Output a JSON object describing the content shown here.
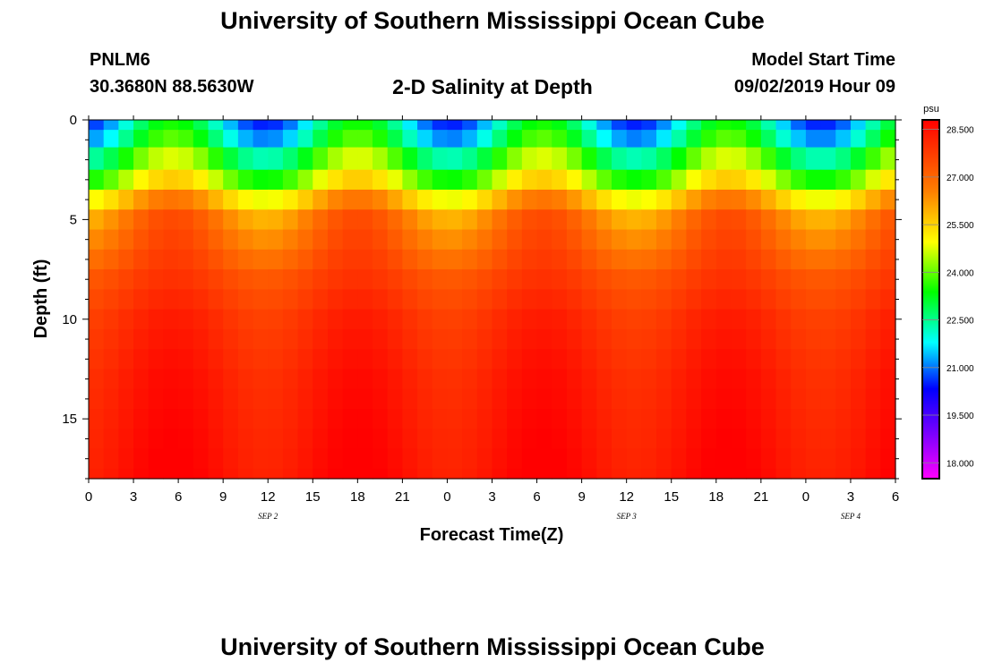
{
  "header": {
    "top_title": "University of Southern Mississippi Ocean Cube",
    "station_name": "PNLM6",
    "station_coords": "30.3680N 88.5630W",
    "plot_title": "2-D Salinity at Depth",
    "model_label": "Model Start Time",
    "model_time": "09/02/2019 Hour 09",
    "bottom_title": "University of Southern Mississippi Ocean Cube"
  },
  "chart_data": {
    "type": "heatmap",
    "title": "2-D Salinity at Depth",
    "xlabel": "Forecast Time(Z)",
    "ylabel": "Depth (ft)",
    "x_ticks": [
      "0",
      "3",
      "6",
      "9",
      "12",
      "15",
      "18",
      "21",
      "0",
      "3",
      "6",
      "9",
      "12",
      "15",
      "18",
      "21",
      "0",
      "3",
      "6"
    ],
    "date_labels": [
      {
        "label": "SEP 2",
        "hour": 12
      },
      {
        "label": "SEP 3",
        "hour": 36
      },
      {
        "label": "SEP 4",
        "hour": 51
      }
    ],
    "x_range_hours": [
      0,
      54
    ],
    "y_ticks": [
      0,
      5,
      10,
      15
    ],
    "y_range_ft": [
      0,
      18
    ],
    "colorbar": {
      "unit": "psu",
      "range": [
        17.5,
        28.8
      ],
      "tick_values": [
        18.0,
        19.5,
        21.0,
        22.5,
        24.0,
        25.5,
        27.0,
        28.5
      ],
      "tick_labels": [
        "18.000",
        "19.500",
        "21.000",
        "22.500",
        "24.000",
        "25.500",
        "27.000",
        "28.500"
      ]
    },
    "depth_rows_ft": [
      0.25,
      0.75,
      2,
      3,
      4,
      5,
      6,
      7,
      8,
      9,
      10,
      11,
      12,
      13,
      14,
      15,
      16,
      17,
      18
    ],
    "salinity_by_depth": [
      {
        "depth_ft": 0.25,
        "typical_psu": 22.0
      },
      {
        "depth_ft": 0.75,
        "typical_psu": 22.5
      },
      {
        "depth_ft": 2,
        "typical_psu": 23.5
      },
      {
        "depth_ft": 3,
        "typical_psu": 24.5
      },
      {
        "depth_ft": 4,
        "typical_psu": 25.8
      },
      {
        "depth_ft": 5,
        "typical_psu": 26.7
      },
      {
        "depth_ft": 6,
        "typical_psu": 27.0
      },
      {
        "depth_ft": 7,
        "typical_psu": 27.3
      },
      {
        "depth_ft": 8,
        "typical_psu": 27.6
      },
      {
        "depth_ft": 9,
        "typical_psu": 27.8
      },
      {
        "depth_ft": 10,
        "typical_psu": 28.0
      },
      {
        "depth_ft": 11,
        "typical_psu": 28.1
      },
      {
        "depth_ft": 12,
        "typical_psu": 28.2
      },
      {
        "depth_ft": 13,
        "typical_psu": 28.3
      },
      {
        "depth_ft": 14,
        "typical_psu": 28.35
      },
      {
        "depth_ft": 15,
        "typical_psu": 28.4
      },
      {
        "depth_ft": 16,
        "typical_psu": 28.45
      },
      {
        "depth_ft": 17,
        "typical_psu": 28.5
      },
      {
        "depth_ft": 18,
        "typical_psu": 28.55
      }
    ]
  }
}
